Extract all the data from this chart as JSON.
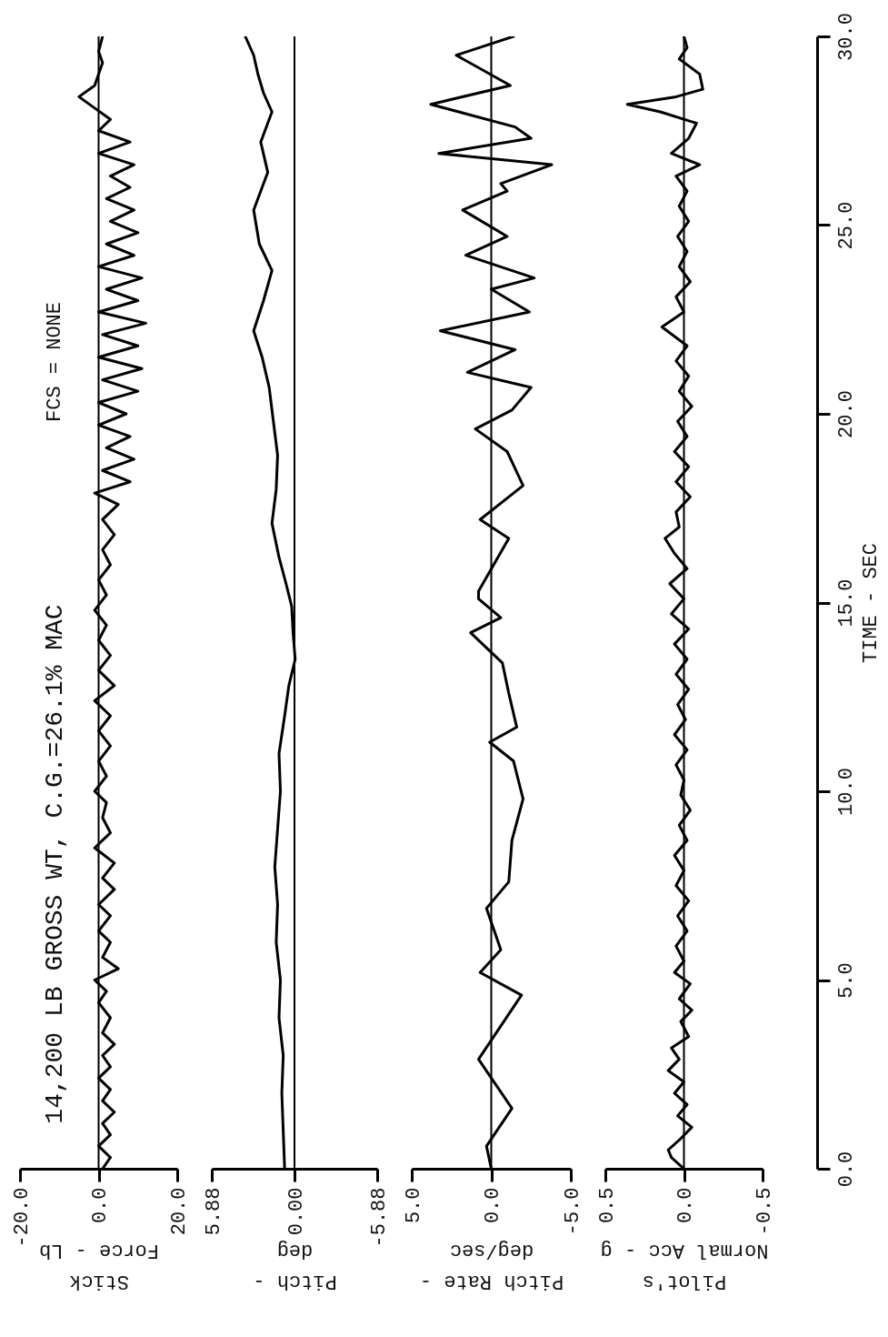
{
  "chart_data": [
    {
      "type": "line",
      "title": "14,200 LB GROSS WT, C.G.=26.1% MAC",
      "subtitle": "FCS = NONE",
      "xlabel": "Stick\nForce - Lb",
      "xlim": [
        -20,
        20
      ],
      "xticks": [
        {
          "value": -20,
          "label": "-20.0"
        },
        {
          "value": 0,
          "label": "0.0"
        },
        {
          "value": 20,
          "label": "20.0"
        }
      ],
      "ylim": [
        0,
        30
      ],
      "tick_labels": "x",
      "ref_lines": [
        {
          "axis": "x",
          "value": 0,
          "color": "#000000"
        }
      ],
      "series": [
        {
          "color": "#000000",
          "values": [
            0,
            0.3,
            0.6,
            0.9,
            1.2,
            1.5,
            1.8,
            2.1,
            2.4,
            2.7,
            3.0,
            3.3,
            3.6,
            4.0,
            4.4,
            4.7,
            5.0,
            5.3,
            5.6,
            6.0,
            6.3,
            6.7,
            7.0,
            7.4,
            7.7,
            8.1,
            8.5,
            8.9,
            9.3,
            9.7,
            10.0,
            10.4,
            10.8,
            11.2,
            11.6,
            12.0,
            12.4,
            12.8,
            13.2,
            13.6,
            14.0,
            14.4,
            14.8,
            15.2,
            15.6,
            16.0,
            16.4,
            16.8,
            17.2,
            17.6,
            17.9,
            18.2,
            18.5,
            18.8,
            19.1,
            19.4,
            19.7,
            20.0,
            20.3,
            20.6,
            20.9,
            21.2,
            21.5,
            21.8,
            22.1,
            22.4,
            22.7,
            23.0,
            23.3,
            23.6,
            23.9,
            24.2,
            24.5,
            24.8,
            25.1,
            25.4,
            25.7,
            26.0,
            26.3,
            26.6,
            26.9,
            27.2,
            27.5,
            27.8,
            28.1,
            28.4,
            28.7,
            29.0,
            29.3,
            29.6,
            30.0
          ],
          "x": [
            1,
            3,
            0,
            3,
            1,
            4,
            1,
            3,
            0,
            3,
            1,
            4,
            1,
            3,
            0,
            2,
            -1,
            5,
            1,
            3,
            0,
            3,
            0,
            4,
            1,
            4,
            -1,
            3,
            1,
            2,
            -1,
            2,
            0,
            3,
            0,
            3,
            -1,
            4,
            0,
            3,
            0,
            2,
            -1,
            2,
            0,
            3,
            1,
            4,
            1,
            5,
            -1,
            8,
            1,
            9,
            2,
            8,
            0,
            7,
            0,
            10,
            1,
            11,
            0,
            10,
            1,
            12,
            0,
            10,
            2,
            11,
            0,
            9,
            2,
            10,
            3,
            9,
            2,
            8,
            3,
            9,
            0,
            8,
            0,
            3,
            -1,
            -5,
            -1,
            0,
            1,
            0,
            1
          ]
        }
      ]
    },
    {
      "type": "line",
      "xlabel": "Pitch -\ndeg",
      "xlim": [
        5.88,
        -5.88
      ],
      "xticks": [
        {
          "value": 5.88,
          "label": "5.88"
        },
        {
          "value": 0,
          "label": "0.00"
        },
        {
          "value": -5.88,
          "label": "-5.88"
        }
      ],
      "ylim": [
        0,
        30
      ],
      "tick_labels": "x",
      "ref_lines": [
        {
          "axis": "x",
          "value": 0,
          "color": "#000000"
        }
      ],
      "series": [
        {
          "color": "#000000",
          "values": [
            0,
            1,
            2,
            3,
            4,
            5,
            6,
            7,
            8,
            9,
            10,
            11,
            12,
            12.8,
            13.5,
            14.2,
            14.9,
            15.5,
            16.2,
            17.1,
            18,
            18.9,
            19.8,
            20.7,
            21.5,
            22.2,
            23,
            23.8,
            24.5,
            25.4,
            26,
            26.4,
            27.2,
            28,
            28.5,
            29,
            29.5,
            30
          ],
          "x": [
            0.7,
            0.8,
            0.9,
            0.8,
            1.1,
            1.0,
            1.3,
            1.2,
            1.4,
            1.2,
            1.0,
            1.1,
            0.7,
            0.4,
            -0.05,
            0.1,
            0.2,
            0.6,
            1.1,
            1.6,
            1.3,
            1.2,
            1.5,
            1.8,
            2.3,
            2.9,
            2.2,
            1.6,
            2.5,
            2.9,
            2.3,
            1.9,
            2.4,
            1.6,
            2.2,
            2.6,
            2.9,
            3.5
          ]
        }
      ]
    },
    {
      "type": "line",
      "xlabel": "Pitch Rate -\ndeg/sec",
      "xlim": [
        5,
        -5
      ],
      "xticks": [
        {
          "value": 5,
          "label": "5.0"
        },
        {
          "value": 0,
          "label": "0.0"
        },
        {
          "value": -5,
          "label": "-5.0"
        }
      ],
      "ylim": [
        0,
        30
      ],
      "tick_labels": "x",
      "ref_lines": [
        {
          "axis": "x",
          "value": 0,
          "color": "#000000"
        }
      ],
      "series": [
        {
          "color": "#000000",
          "values": [
            0,
            0.6,
            1.6,
            2.9,
            4.6,
            5.2,
            5.8,
            6.9,
            7.6,
            8.7,
            9.8,
            10.8,
            11.3,
            11.7,
            12.6,
            13.4,
            14.2,
            14.6,
            15.1,
            15.3,
            16.7,
            17.2,
            18.1,
            19.0,
            19.6,
            20.1,
            20.7,
            21.1,
            21.7,
            22.2,
            22.7,
            23.3,
            23.6,
            24.2,
            24.7,
            25.4,
            25.9,
            26.1,
            26.6,
            26.9,
            27.3,
            27.6,
            28.2,
            28.7,
            29.5,
            30
          ],
          "x": [
            0,
            0.3,
            -1.3,
            0.8,
            -1.9,
            0.7,
            -0.6,
            0.3,
            -1.1,
            -1.3,
            -2.0,
            -1.4,
            0.1,
            -1.6,
            -1.1,
            -0.7,
            1.3,
            -0.6,
            0.8,
            0.8,
            -1.1,
            0.7,
            -2.0,
            -1.0,
            1.0,
            -1.3,
            -2.5,
            1.5,
            -1.5,
            3.2,
            -2.4,
            0,
            -2.7,
            1.6,
            -1.0,
            1.8,
            -1.0,
            -0.6,
            -3.8,
            3.3,
            -2.5,
            -1.5,
            3.8,
            -1.2,
            2.2,
            -1.4
          ]
        }
      ]
    },
    {
      "type": "line",
      "xlabel": "Pilot's\nNormal Acc - g",
      "ylabel": "TIME - SEC",
      "xlim": [
        0.5,
        -0.5
      ],
      "xticks": [
        {
          "value": 0.5,
          "label": "0.5"
        },
        {
          "value": 0,
          "label": "0.0"
        },
        {
          "value": -0.5,
          "label": "-0.5"
        }
      ],
      "ylim": [
        0,
        30
      ],
      "yticks": [
        {
          "value": 0,
          "label": "0.0"
        },
        {
          "value": 5,
          "label": "5.0"
        },
        {
          "value": 10,
          "label": "10.0"
        },
        {
          "value": 15,
          "label": "15.0"
        },
        {
          "value": 20,
          "label": "20.0"
        },
        {
          "value": 25,
          "label": "25.0"
        },
        {
          "value": 30,
          "label": "30.0"
        }
      ],
      "ref_lines": [
        {
          "axis": "x",
          "value": 0,
          "color": "#000000"
        }
      ],
      "series": [
        {
          "color": "#000000",
          "values": [
            0,
            0.3,
            0.5,
            0.8,
            1.1,
            1.4,
            1.7,
            2.0,
            2.3,
            2.6,
            2.9,
            3.2,
            3.5,
            3.9,
            4.2,
            4.5,
            4.9,
            5.2,
            5.5,
            5.9,
            6.3,
            6.7,
            7.1,
            7.5,
            7.9,
            8.3,
            8.7,
            9.1,
            9.5,
            9.9,
            10.3,
            10.7,
            11.1,
            11.5,
            11.9,
            12.3,
            12.7,
            13.1,
            13.5,
            13.9,
            14.3,
            14.7,
            15.1,
            15.5,
            15.9,
            16.3,
            16.7,
            17.0,
            17.4,
            17.8,
            18.2,
            18.6,
            19.0,
            19.4,
            19.8,
            20.2,
            20.6,
            21.0,
            21.4,
            21.8,
            22.3,
            22.7,
            23.1,
            23.5,
            23.9,
            24.3,
            24.7,
            25.1,
            25.5,
            25.9,
            26.3,
            26.6,
            26.9,
            27.3,
            27.7,
            28.0,
            28.2,
            28.4,
            28.6,
            29.0,
            29.4,
            29.7,
            30.0
          ],
          "x": [
            0,
            0.08,
            0.1,
            0.02,
            -0.05,
            0.04,
            -0.02,
            0.06,
            0.0,
            0.1,
            0.03,
            0.08,
            -0.03,
            0.02,
            -0.05,
            0.03,
            -0.04,
            0.06,
            0.0,
            0.05,
            -0.02,
            0.04,
            -0.03,
            0.05,
            0.0,
            0.06,
            -0.02,
            0.03,
            -0.04,
            0.02,
            0.0,
            0.05,
            -0.02,
            0.06,
            -0.01,
            0.04,
            -0.03,
            0.05,
            -0.02,
            0.06,
            -0.03,
            0.08,
            0.0,
            0.09,
            -0.02,
            0.06,
            0.12,
            0.03,
            0.05,
            -0.04,
            0.05,
            -0.03,
            0.06,
            -0.02,
            0.04,
            -0.05,
            0.03,
            -0.03,
            0.05,
            -0.02,
            0.14,
            0.0,
            0.05,
            -0.04,
            0.03,
            -0.02,
            0.04,
            -0.03,
            0.03,
            -0.02,
            0.05,
            -0.1,
            0.08,
            -0.03,
            -0.08,
            0.15,
            0.36,
            0.05,
            -0.12,
            -0.1,
            0.03,
            -0.02,
            0.0
          ]
        }
      ]
    }
  ]
}
